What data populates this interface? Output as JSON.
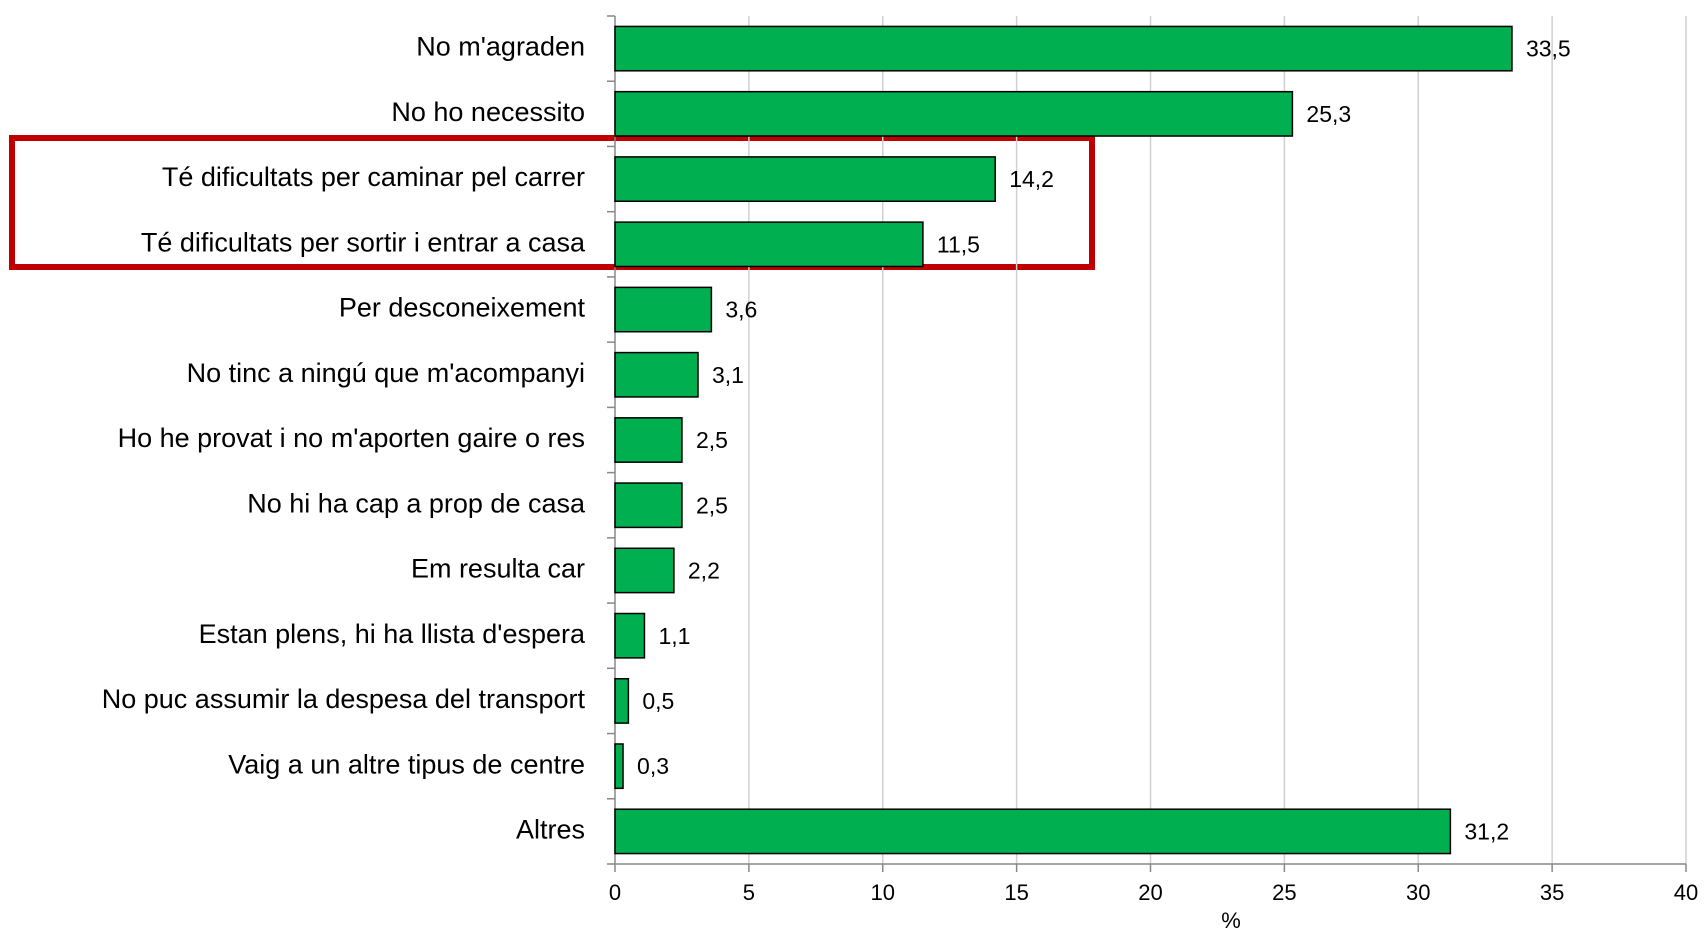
{
  "chart_data": {
    "type": "bar",
    "orientation": "horizontal",
    "categories": [
      "No m'agraden",
      "No ho necessito",
      "Té dificultats per caminar pel carrer",
      "Té dificultats per sortir i entrar a casa",
      "Per desconeixement",
      "No tinc a ningú que m'acompanyi",
      "Ho he provat i no m'aporten gaire o res",
      "No hi ha cap a prop de casa",
      "Em resulta car",
      "Estan plens, hi ha llista d'espera",
      "No puc assumir la despesa del transport",
      "Vaig a un altre tipus de centre",
      "Altres"
    ],
    "values": [
      33.5,
      25.3,
      14.2,
      11.5,
      3.6,
      3.1,
      2.5,
      2.5,
      2.2,
      1.1,
      0.5,
      0.3,
      31.2
    ],
    "value_labels": [
      "33,5",
      "25,3",
      "14,2",
      "11,5",
      "3,6",
      "3,1",
      "2,5",
      "2,5",
      "2,2",
      "1,1",
      "0,5",
      "0,3",
      "31,2"
    ],
    "color": "#00b050",
    "xlabel": "%",
    "xlim": [
      0,
      40
    ],
    "xticks": [
      0,
      5,
      10,
      15,
      20,
      25,
      30,
      35,
      40
    ],
    "grid": true
  }
}
